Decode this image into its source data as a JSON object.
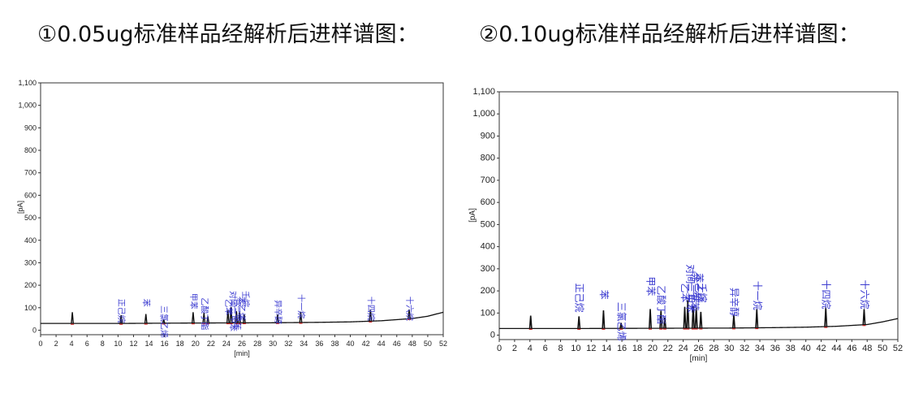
{
  "titles": {
    "left": "①0.05ug标准样品经解析后进样谱图：",
    "right": "②0.10ug标准样品经解析后进样谱图："
  },
  "colors": {
    "trace": "#111111",
    "peak_marker": "#cc2222",
    "peak_label": "#3a3ad0",
    "frame": "#333333"
  },
  "chart_data": [
    {
      "type": "line",
      "title": "①0.05ug标准样品经解析后进样谱图：",
      "xlabel": "[min]",
      "ylabel": "[pA]",
      "xlim": [
        0,
        52
      ],
      "ylim": [
        -20,
        1100
      ],
      "xticks": [
        0,
        2,
        4,
        6,
        8,
        10,
        12,
        14,
        16,
        18,
        20,
        22,
        24,
        26,
        28,
        30,
        32,
        34,
        36,
        38,
        40,
        42,
        44,
        46,
        48,
        50,
        52
      ],
      "yticks": [
        0,
        100,
        200,
        300,
        400,
        500,
        600,
        700,
        800,
        900,
        1000,
        1100
      ],
      "ytick_labels": [
        "0",
        "100",
        "200",
        "300",
        "400",
        "500",
        "600",
        "700",
        "800",
        "900",
        "1,000",
        "1,100"
      ],
      "grid": false,
      "baseline": [
        [
          0,
          30
        ],
        [
          10,
          30
        ],
        [
          20,
          32
        ],
        [
          30,
          33
        ],
        [
          36,
          35
        ],
        [
          40,
          37
        ],
        [
          44,
          42
        ],
        [
          48,
          52
        ],
        [
          50,
          62
        ],
        [
          52,
          80
        ]
      ],
      "peaks": [
        {
          "x": 4.1,
          "y": 80
        },
        {
          "x": 10.4,
          "y": 67
        },
        {
          "x": 13.6,
          "y": 72
        },
        {
          "x": 15.9,
          "y": 48
        },
        {
          "x": 19.7,
          "y": 80
        },
        {
          "x": 21.1,
          "y": 78
        },
        {
          "x": 21.6,
          "y": 62
        },
        {
          "x": 24.2,
          "y": 88
        },
        {
          "x": 24.6,
          "y": 103
        },
        {
          "x": 25.3,
          "y": 84
        },
        {
          "x": 25.7,
          "y": 80
        },
        {
          "x": 26.3,
          "y": 70
        },
        {
          "x": 30.6,
          "y": 70
        },
        {
          "x": 33.6,
          "y": 82
        },
        {
          "x": 42.6,
          "y": 92
        },
        {
          "x": 47.6,
          "y": 92
        }
      ],
      "labels": [
        {
          "text": "正己烷",
          "x": 10.4,
          "y": 140
        },
        {
          "text": "苯",
          "x": 13.6,
          "y": 140
        },
        {
          "text": "三氯乙烯",
          "x": 15.9,
          "y": 110
        },
        {
          "text": "甲苯",
          "x": 19.7,
          "y": 165
        },
        {
          "text": "乙酸丁酯",
          "x": 21.1,
          "y": 145
        },
        {
          "text": "乙苯",
          "x": 24.2,
          "y": 138
        },
        {
          "text": "对间二甲苯",
          "x": 24.8,
          "y": 175
        },
        {
          "text": "邻二甲苯",
          "x": 25.3,
          "y": 145
        },
        {
          "text": "苯乙烯",
          "x": 25.9,
          "y": 150
        },
        {
          "text": "壬烷",
          "x": 26.4,
          "y": 175
        },
        {
          "text": "异辛醇",
          "x": 30.6,
          "y": 135
        },
        {
          "text": "十一烷",
          "x": 33.6,
          "y": 160
        },
        {
          "text": "十四烷",
          "x": 42.6,
          "y": 150
        },
        {
          "text": "十六烷",
          "x": 47.6,
          "y": 150
        }
      ]
    },
    {
      "type": "line",
      "title": "②0.10ug标准样品经解析后进样谱图：",
      "xlabel": "[min]",
      "ylabel": "[pA]",
      "xlim": [
        0,
        52
      ],
      "ylim": [
        -20,
        1100
      ],
      "xticks": [
        0,
        2,
        4,
        6,
        8,
        10,
        12,
        14,
        16,
        18,
        20,
        22,
        24,
        26,
        28,
        30,
        32,
        34,
        36,
        38,
        40,
        42,
        44,
        46,
        48,
        50,
        52
      ],
      "yticks": [
        0,
        100,
        200,
        300,
        400,
        500,
        600,
        700,
        800,
        900,
        1000,
        1100
      ],
      "ytick_labels": [
        "0",
        "100",
        "200",
        "300",
        "400",
        "500",
        "600",
        "700",
        "800",
        "900",
        "1,000",
        "1,100"
      ],
      "grid": false,
      "baseline": [
        [
          0,
          30
        ],
        [
          10,
          30
        ],
        [
          20,
          31
        ],
        [
          30,
          32
        ],
        [
          36,
          34
        ],
        [
          40,
          36
        ],
        [
          44,
          40
        ],
        [
          48,
          48
        ],
        [
          50,
          60
        ],
        [
          52,
          75
        ]
      ],
      "peaks": [
        {
          "x": 4.1,
          "y": 88
        },
        {
          "x": 10.4,
          "y": 85
        },
        {
          "x": 13.6,
          "y": 112
        },
        {
          "x": 15.9,
          "y": 55
        },
        {
          "x": 19.7,
          "y": 118
        },
        {
          "x": 21.1,
          "y": 110
        },
        {
          "x": 21.6,
          "y": 80
        },
        {
          "x": 24.2,
          "y": 128
        },
        {
          "x": 24.6,
          "y": 158
        },
        {
          "x": 25.3,
          "y": 130
        },
        {
          "x": 25.7,
          "y": 125
        },
        {
          "x": 26.3,
          "y": 105
        },
        {
          "x": 30.6,
          "y": 92
        },
        {
          "x": 33.6,
          "y": 118
        },
        {
          "x": 42.6,
          "y": 125
        },
        {
          "x": 47.6,
          "y": 118
        }
      ],
      "labels": [
        {
          "text": "正己烷",
          "x": 10.4,
          "y": 235
        },
        {
          "text": "苯",
          "x": 13.6,
          "y": 205
        },
        {
          "text": "三氯乙烯",
          "x": 15.9,
          "y": 150
        },
        {
          "text": "甲苯",
          "x": 19.7,
          "y": 265
        },
        {
          "text": "乙酸丁酯",
          "x": 21.1,
          "y": 225
        },
        {
          "text": "乙苯",
          "x": 24.2,
          "y": 235
        },
        {
          "text": "对间二甲苯",
          "x": 24.9,
          "y": 320
        },
        {
          "text": "邻二甲苯",
          "x": 25.4,
          "y": 285
        },
        {
          "text": "苯乙烯",
          "x": 26.0,
          "y": 280
        },
        {
          "text": "壬烷",
          "x": 26.4,
          "y": 235
        },
        {
          "text": "异辛醇",
          "x": 30.6,
          "y": 215
        },
        {
          "text": "十一烷",
          "x": 33.6,
          "y": 245
        },
        {
          "text": "十四烷",
          "x": 42.6,
          "y": 250
        },
        {
          "text": "十六烷",
          "x": 47.6,
          "y": 250
        }
      ]
    }
  ]
}
